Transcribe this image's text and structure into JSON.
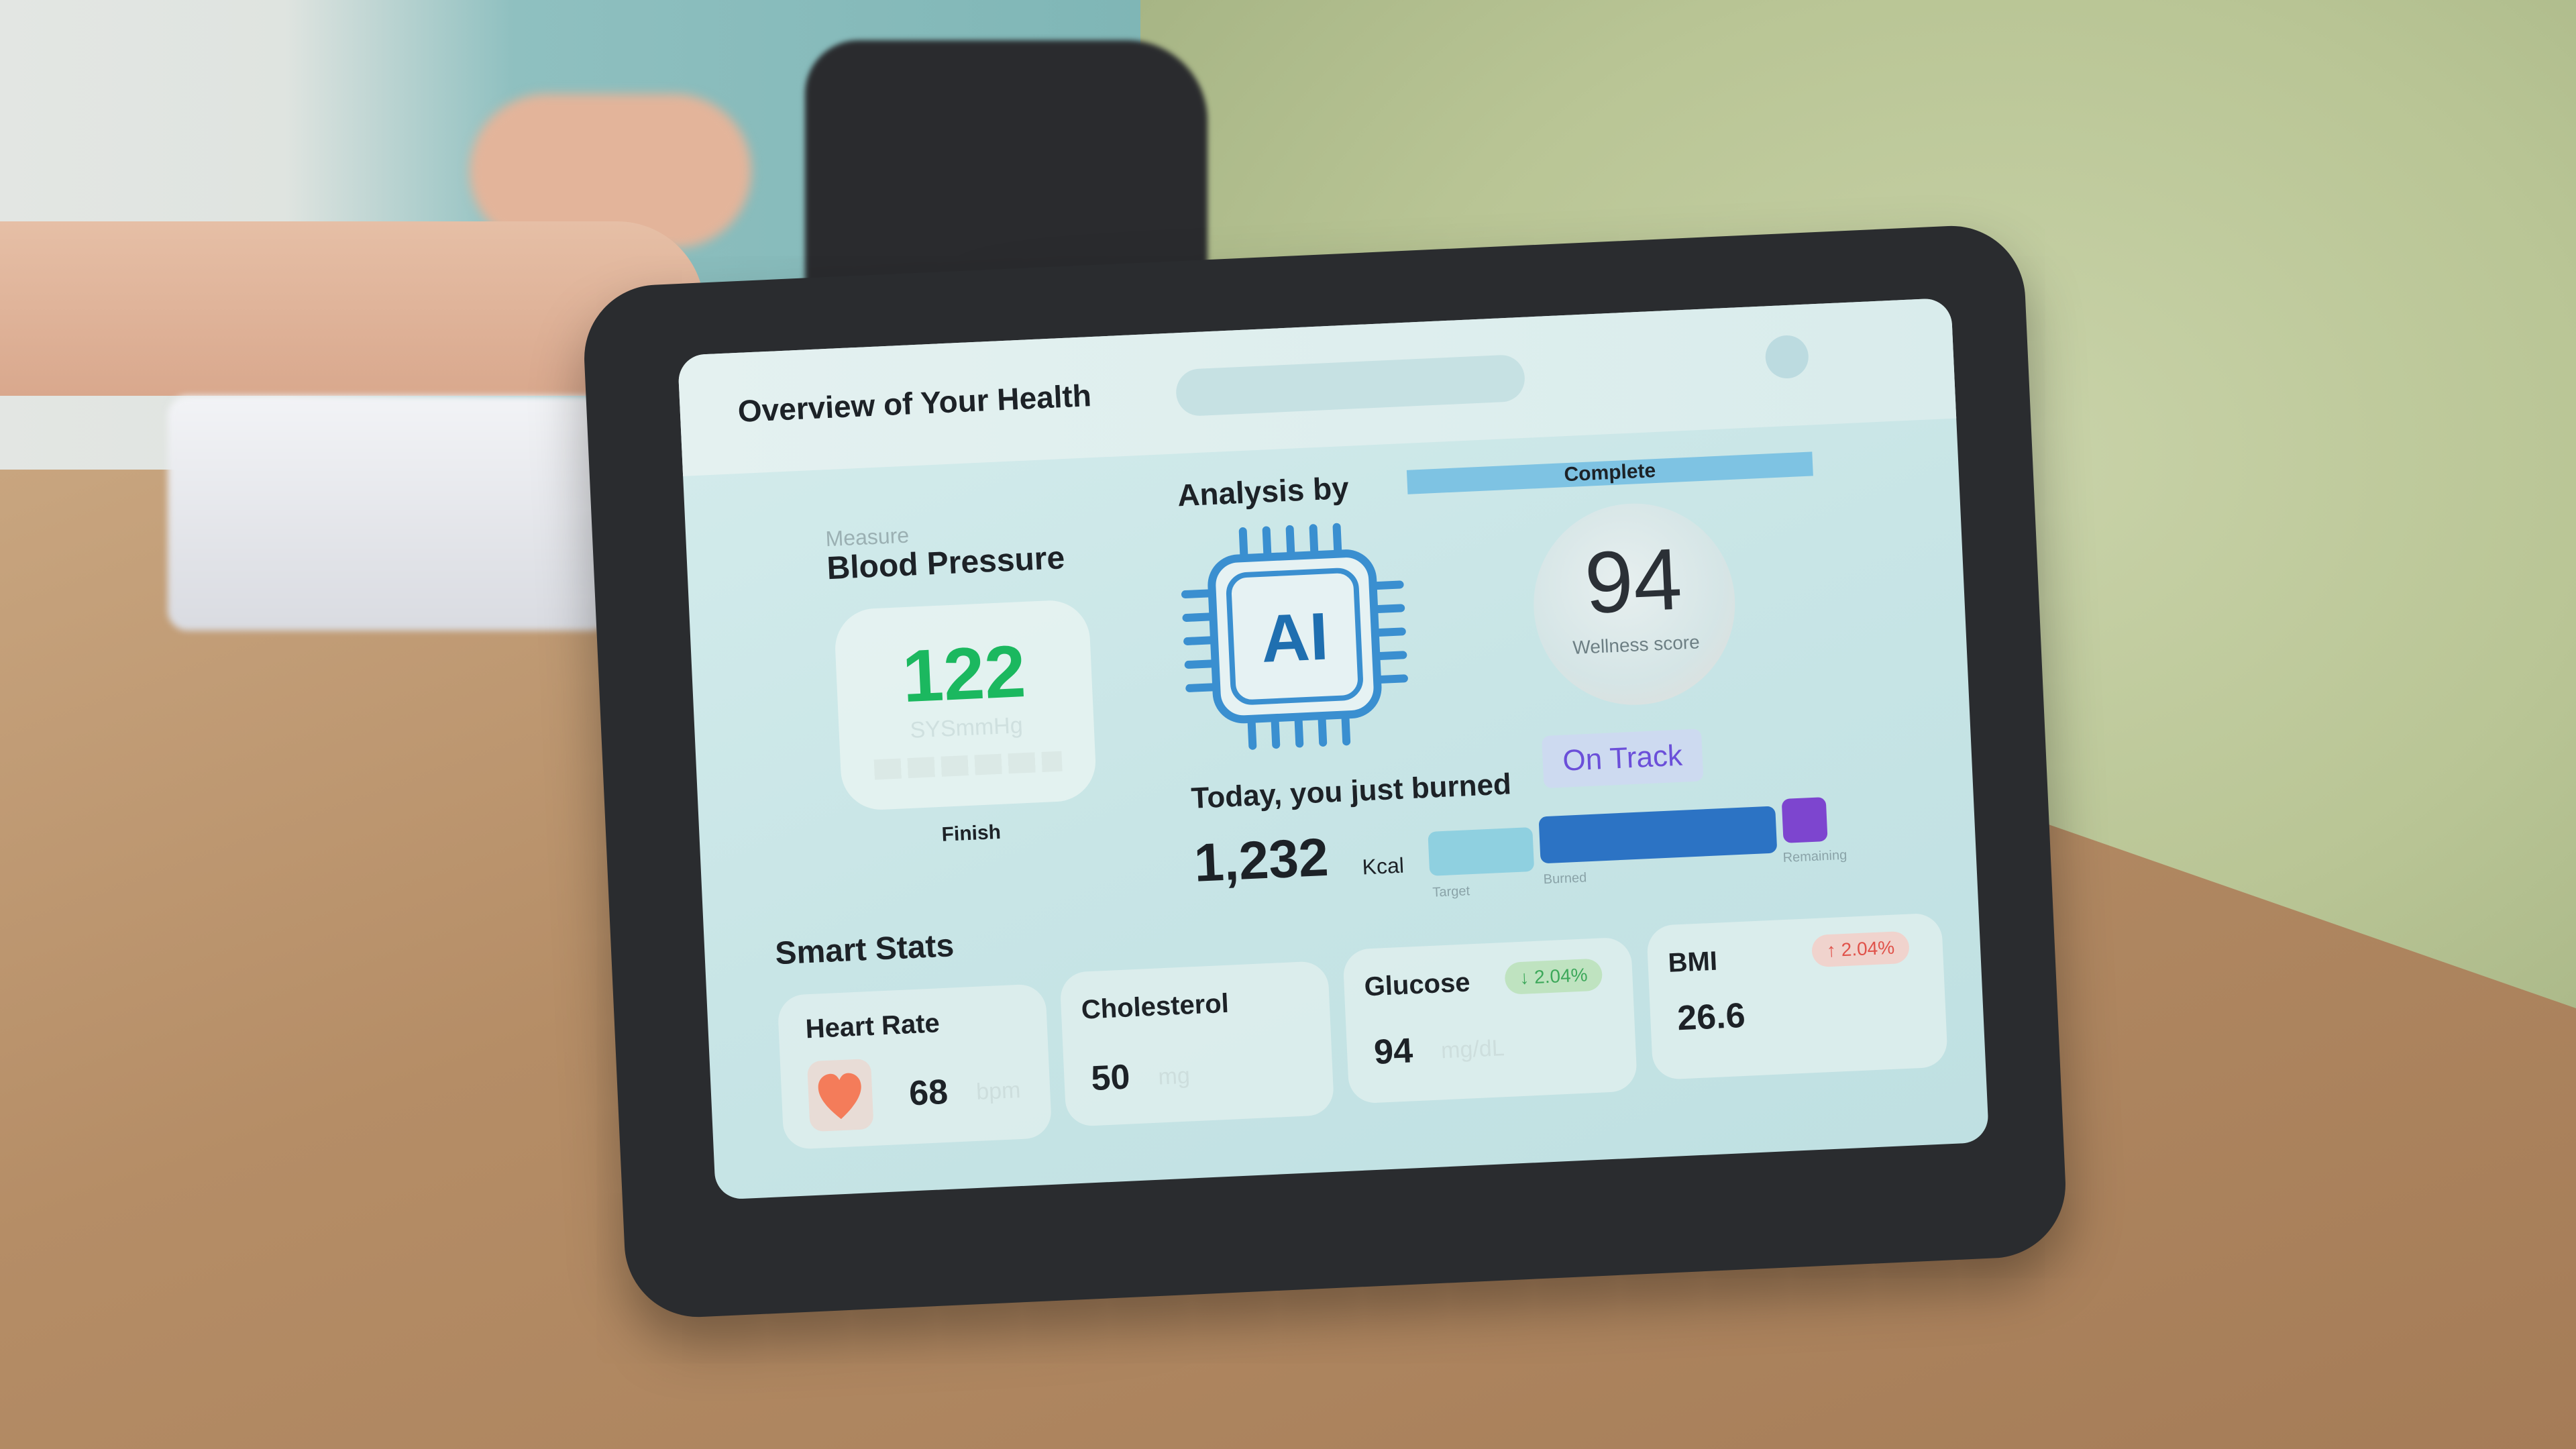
{
  "header": {
    "title": "Overview of Your Health"
  },
  "blood_pressure": {
    "caption": "Measure",
    "title": "Blood Pressure",
    "value": "122",
    "unit": "SYSmmHg",
    "status": "Finish"
  },
  "analysis": {
    "label": "Analysis by",
    "chip_label": "AI",
    "status": "Complete",
    "score": "94",
    "score_label": "Wellness score"
  },
  "calories": {
    "title": "Today, you just burned",
    "badge": "On Track",
    "value": "1,232",
    "unit": "Kcal",
    "bars": [
      {
        "label": "Target",
        "color": "#8fd0e0"
      },
      {
        "label": "Burned",
        "color": "#2c73c4"
      },
      {
        "label": "Remaining",
        "color": "#7d45cf"
      }
    ]
  },
  "smart_stats": {
    "title": "Smart Stats",
    "heart_rate": {
      "label": "Heart Rate",
      "value": "68",
      "unit": "bpm",
      "icon": "heart-icon",
      "icon_color": "#f47c5a"
    },
    "cholesterol": {
      "label": "Cholesterol",
      "value": "50",
      "unit": "mg"
    },
    "glucose": {
      "label": "Glucose",
      "value": "94",
      "unit": "mg/dL",
      "change": "↓ 2.04%",
      "change_color": "#3da85a"
    },
    "bmi": {
      "label": "BMI",
      "value": "26.6",
      "change": "↑ 2.04%",
      "change_color": "#e0524a"
    }
  }
}
